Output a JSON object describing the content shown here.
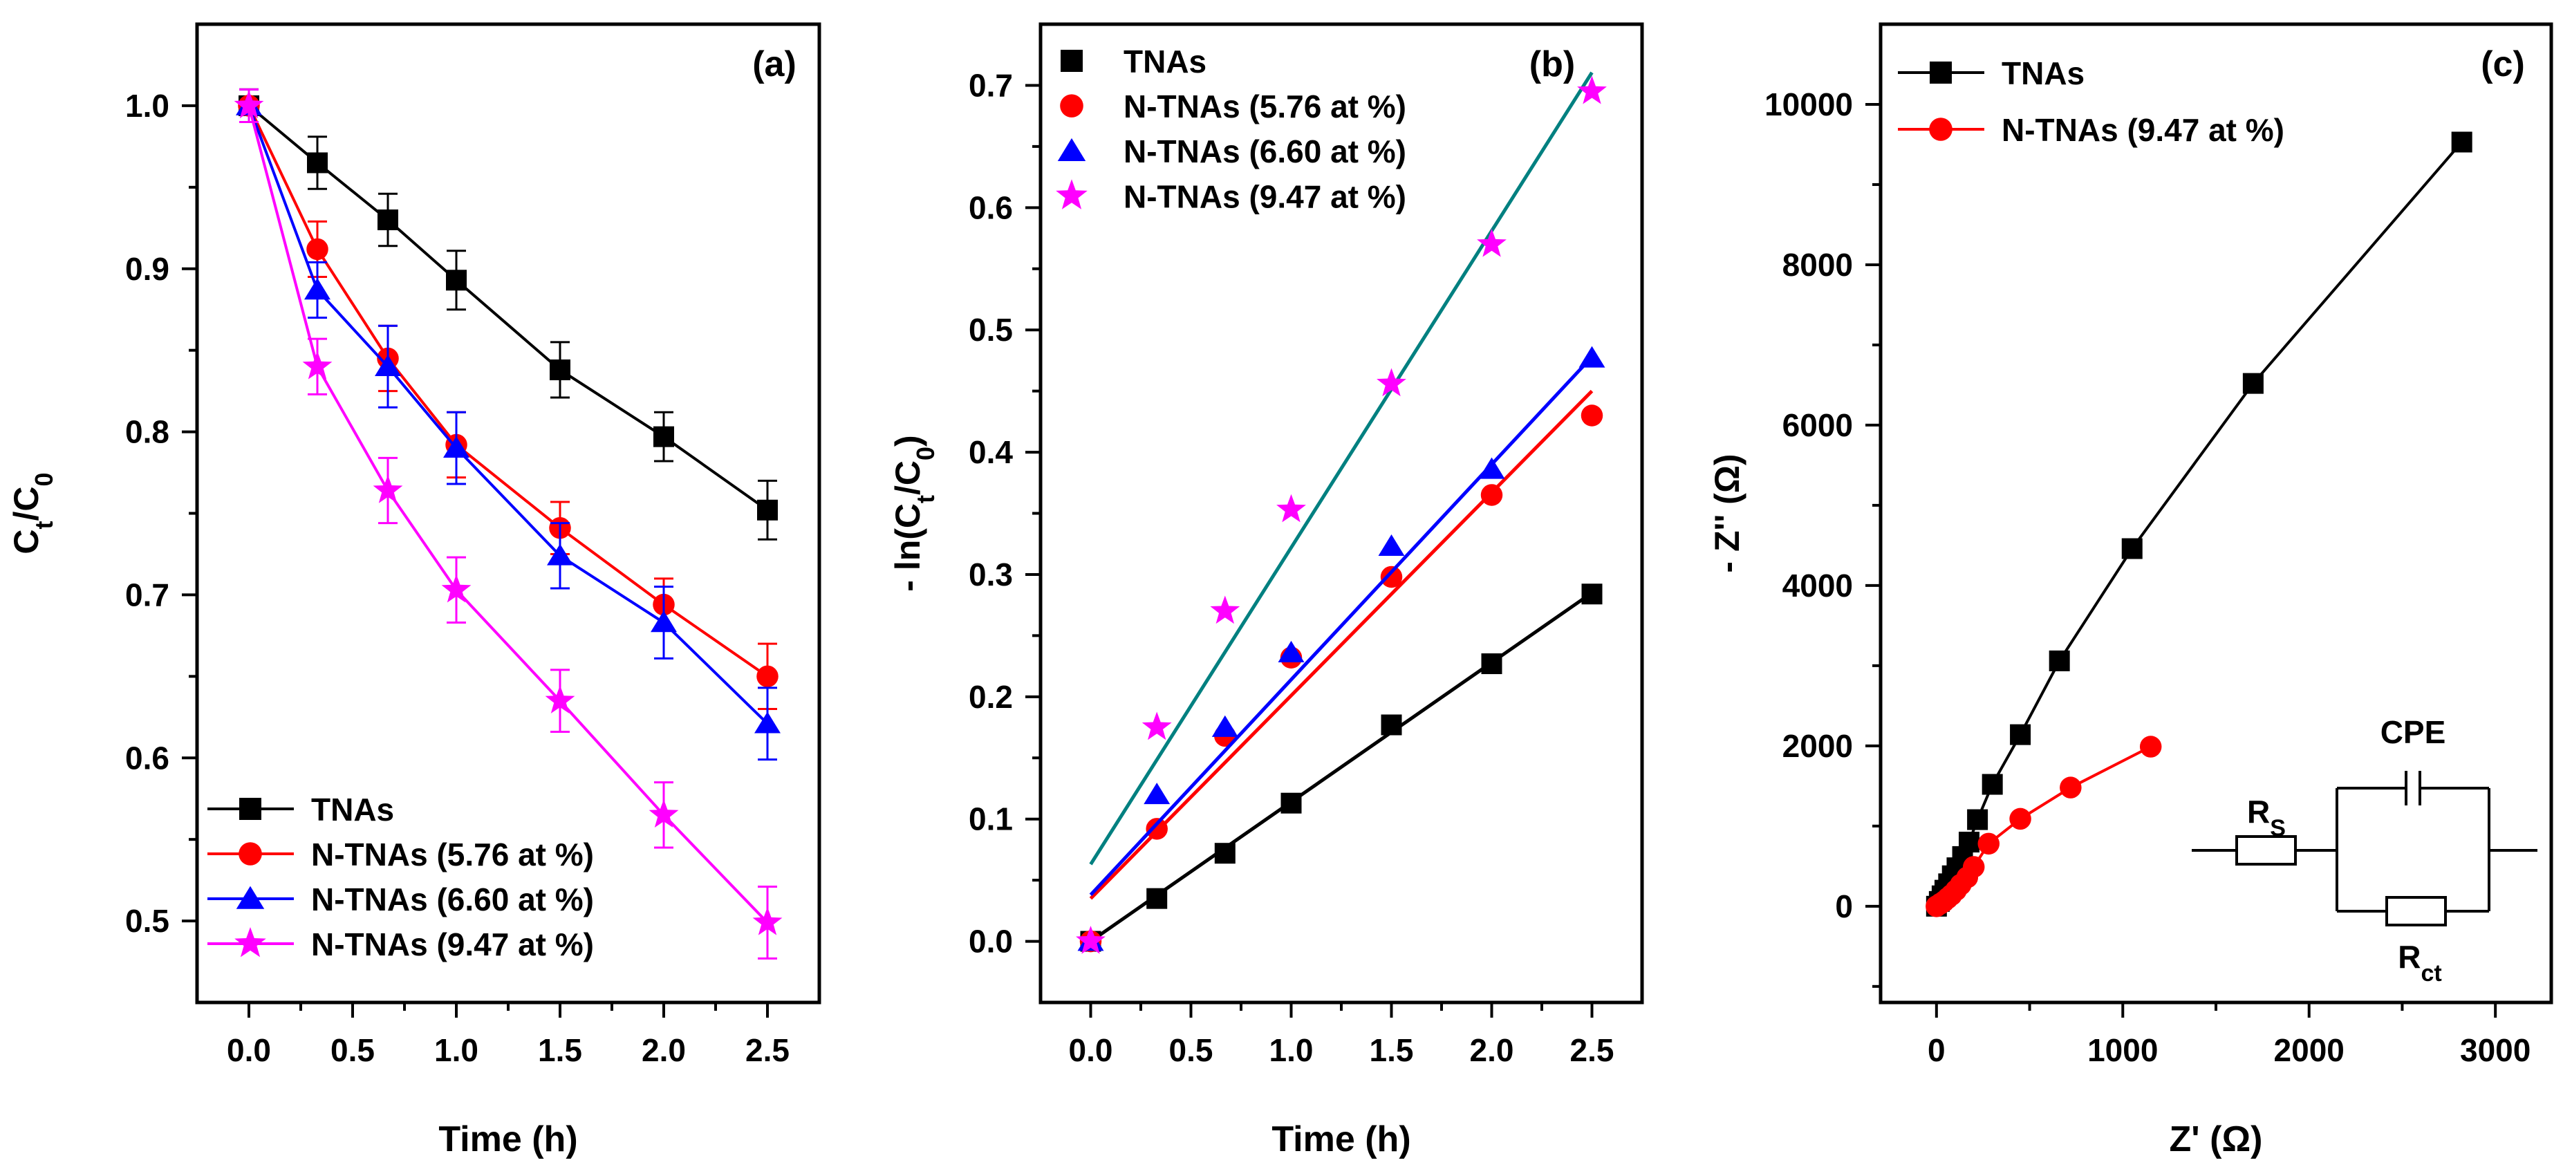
{
  "colors": {
    "tnas": "#000000",
    "n576": "#ff0000",
    "n660": "#0000ff",
    "n947": "#ff00ff",
    "fit947": "#008080"
  },
  "chart_data": [
    {
      "panel": "(a)",
      "type": "line",
      "xlabel": "Time (h)",
      "ylabel": "C_t/C_0",
      "xlim": [
        -0.25,
        2.75
      ],
      "ylim": [
        0.45,
        1.05
      ],
      "xticks": [
        0.0,
        0.5,
        1.0,
        1.5,
        2.0,
        2.5
      ],
      "xtick_labels": [
        "0.0",
        "0.5",
        "1.0",
        "1.5",
        "2.0",
        "2.5"
      ],
      "yticks": [
        0.5,
        0.6,
        0.7,
        0.8,
        0.9,
        1.0
      ],
      "ytick_labels": [
        "0.5",
        "0.6",
        "0.7",
        "0.8",
        "0.9",
        "1.0"
      ],
      "legend_position": "bottom-left",
      "x": [
        0,
        0.33,
        0.67,
        1.0,
        1.5,
        2.0,
        2.5
      ],
      "series": [
        {
          "name": "TNAs",
          "color": "#000000",
          "marker": "square",
          "values": [
            1.0,
            0.965,
            0.93,
            0.893,
            0.838,
            0.797,
            0.752
          ],
          "errors": [
            0.01,
            0.016,
            0.016,
            0.018,
            0.017,
            0.015,
            0.018
          ]
        },
        {
          "name": "N-TNAs (5.76 at %)",
          "color": "#ff0000",
          "marker": "circle",
          "values": [
            1.0,
            0.912,
            0.845,
            0.792,
            0.741,
            0.694,
            0.65
          ],
          "errors": [
            0.01,
            0.017,
            0.02,
            0.02,
            0.016,
            0.016,
            0.02
          ]
        },
        {
          "name": "N-TNAs (6.60 at %)",
          "color": "#0000ff",
          "marker": "triangle",
          "values": [
            1.0,
            0.887,
            0.84,
            0.79,
            0.724,
            0.683,
            0.621
          ],
          "errors": [
            0.01,
            0.017,
            0.025,
            0.022,
            0.02,
            0.022,
            0.022
          ]
        },
        {
          "name": "N-TNAs (9.47 at %)",
          "color": "#ff00ff",
          "marker": "star",
          "values": [
            1.0,
            0.84,
            0.764,
            0.703,
            0.635,
            0.565,
            0.499
          ],
          "errors": [
            0.01,
            0.017,
            0.02,
            0.02,
            0.019,
            0.02,
            0.022
          ]
        }
      ]
    },
    {
      "panel": "(b)",
      "type": "scatter",
      "xlabel": "Time (h)",
      "ylabel": "- ln(C_t/C_0)",
      "xlim": [
        -0.25,
        2.75
      ],
      "ylim": [
        -0.05,
        0.75
      ],
      "xticks": [
        0.0,
        0.5,
        1.0,
        1.5,
        2.0,
        2.5
      ],
      "xtick_labels": [
        "0.0",
        "0.5",
        "1.0",
        "1.5",
        "2.0",
        "2.5"
      ],
      "yticks": [
        0.0,
        0.1,
        0.2,
        0.3,
        0.4,
        0.5,
        0.6,
        0.7
      ],
      "ytick_labels": [
        "0.0",
        "0.1",
        "0.2",
        "0.3",
        "0.4",
        "0.5",
        "0.6",
        "0.7"
      ],
      "legend_position": "top-left",
      "x": [
        0,
        0.33,
        0.67,
        1.0,
        1.5,
        2.0,
        2.5
      ],
      "series": [
        {
          "name": "TNAs",
          "color": "#000000",
          "marker": "square",
          "values": [
            0.0,
            0.035,
            0.072,
            0.113,
            0.177,
            0.227,
            0.284
          ],
          "fit": [
            0.0,
            0.114
          ],
          "fit_color": "#000000"
        },
        {
          "name": "N-TNAs (5.76 at %)",
          "color": "#ff0000",
          "marker": "circle",
          "values": [
            0.0,
            0.092,
            0.168,
            0.232,
            0.298,
            0.365,
            0.43
          ],
          "fit": [
            0.035,
            0.166
          ],
          "fit_color": "#ff0000"
        },
        {
          "name": "N-TNAs (6.60 at %)",
          "color": "#0000ff",
          "marker": "triangle",
          "values": [
            0.0,
            0.12,
            0.175,
            0.236,
            0.323,
            0.386,
            0.477
          ],
          "fit": [
            0.038,
            0.176
          ],
          "fit_color": "#0000ff"
        },
        {
          "name": "N-TNAs (9.47 at %)",
          "color": "#ff00ff",
          "marker": "star",
          "values": [
            0.0,
            0.175,
            0.27,
            0.353,
            0.456,
            0.57,
            0.695
          ],
          "fit": [
            0.063,
            0.259
          ],
          "fit_color": "#008080"
        }
      ]
    },
    {
      "panel": "(c)",
      "type": "line",
      "xlabel": "Z' (Ω)",
      "ylabel": "- Z'' (Ω)",
      "xlim": [
        -300,
        3300
      ],
      "ylim": [
        -1200,
        11000
      ],
      "xticks": [
        0,
        1000,
        2000,
        3000
      ],
      "xtick_labels": [
        "0",
        "1000",
        "2000",
        "3000"
      ],
      "yticks": [
        0,
        2000,
        4000,
        6000,
        8000,
        10000
      ],
      "ytick_labels": [
        "0",
        "2000",
        "4000",
        "6000",
        "8000",
        "10000"
      ],
      "legend_position": "top-left",
      "series": [
        {
          "name": "TNAs",
          "color": "#000000",
          "marker": "square",
          "x": [
            0,
            15,
            30,
            45,
            65,
            85,
            110,
            140,
            175,
            220,
            300,
            450,
            660,
            1050,
            1700,
            2820
          ],
          "y": [
            0,
            60,
            130,
            200,
            280,
            380,
            480,
            620,
            800,
            1080,
            1520,
            2140,
            3060,
            4460,
            6520,
            9530
          ]
        },
        {
          "name": "N-TNAs (9.47 at %)",
          "color": "#ff0000",
          "marker": "circle",
          "x": [
            0,
            20,
            40,
            60,
            80,
            105,
            130,
            165,
            200,
            280,
            450,
            720,
            1150
          ],
          "y": [
            0,
            30,
            60,
            100,
            140,
            200,
            270,
            360,
            490,
            780,
            1090,
            1480,
            1990
          ]
        }
      ],
      "circuit": {
        "r_s": "R",
        "r_s_sub": "S",
        "cpe": "CPE",
        "r_ct": "R",
        "r_ct_sub": "ct"
      }
    }
  ],
  "panel_labels": [
    "(a)",
    "(b)",
    "(c)"
  ]
}
